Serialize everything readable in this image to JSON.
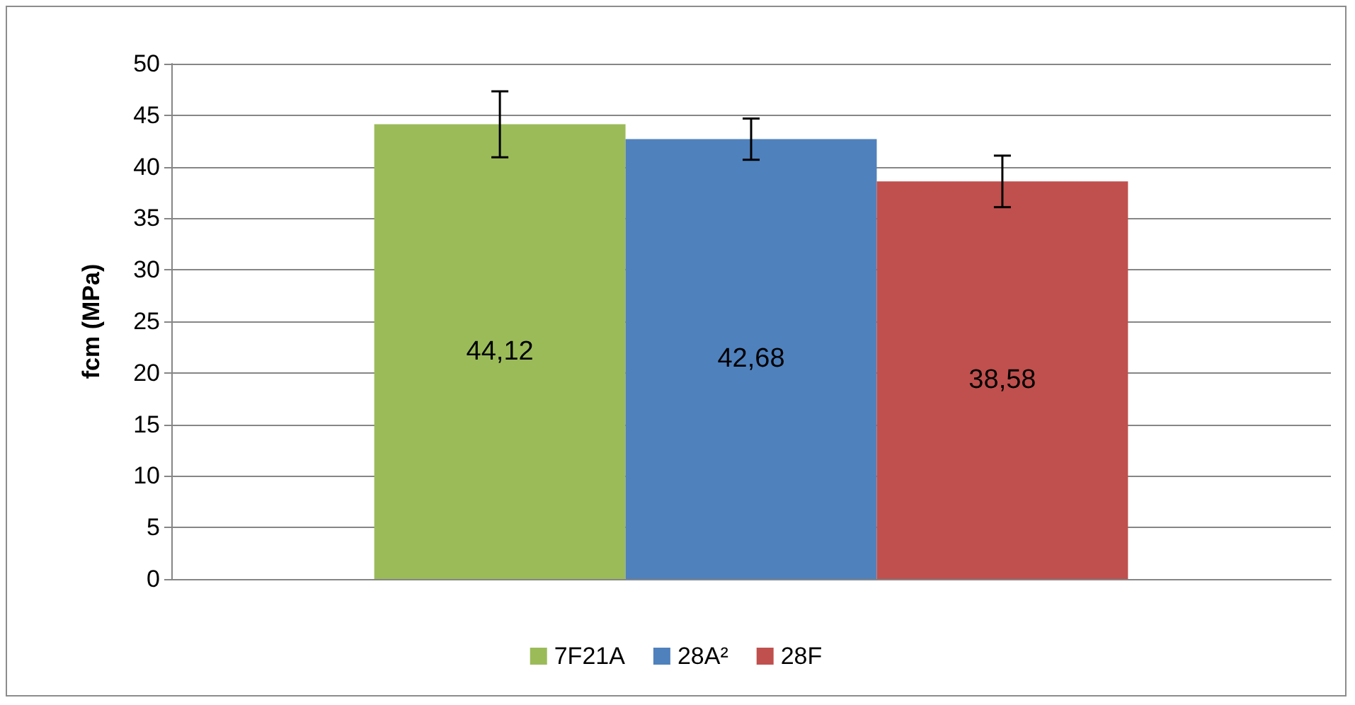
{
  "chart_data": {
    "type": "bar",
    "ylabel": "fcm (MPa)",
    "categories": [
      null
    ],
    "series": [
      {
        "name": "7F21A",
        "color": "#9bbb59",
        "values": [
          44.12
        ],
        "value_labels": [
          "44,12"
        ],
        "errors": [
          3.2
        ]
      },
      {
        "name": "28A²",
        "color": "#4f81bd",
        "values": [
          42.68
        ],
        "value_labels": [
          "42,68"
        ],
        "errors": [
          2.0
        ]
      },
      {
        "name": "28F",
        "color": "#c0504d",
        "values": [
          38.58
        ],
        "value_labels": [
          "38,58"
        ],
        "errors": [
          2.5
        ]
      }
    ],
    "ylim": [
      0,
      50
    ],
    "yticks": [
      0,
      5,
      10,
      15,
      20,
      25,
      30,
      35,
      40,
      45,
      50
    ],
    "grid": "y",
    "legend": "bottom"
  }
}
